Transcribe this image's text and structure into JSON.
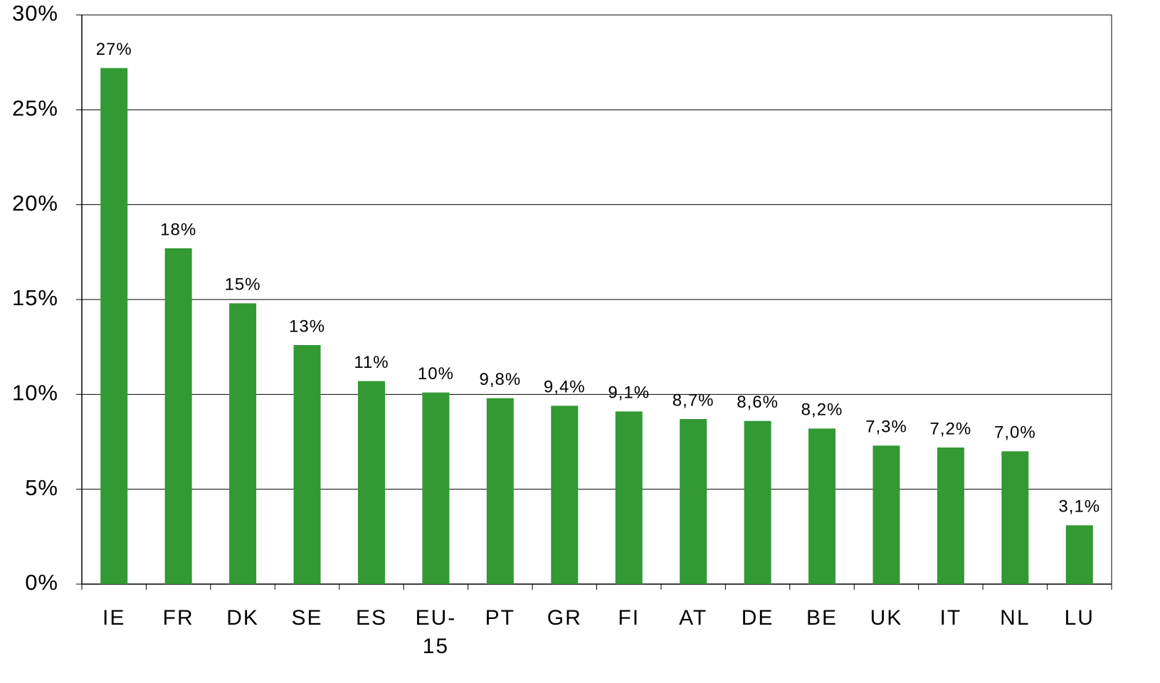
{
  "chart_data": {
    "type": "bar",
    "categories": [
      "IE",
      "FR",
      "DK",
      "SE",
      "ES",
      "EU-15",
      "PT",
      "GR",
      "FI",
      "AT",
      "DE",
      "BE",
      "UK",
      "IT",
      "NL",
      "LU"
    ],
    "values": [
      27.2,
      17.7,
      14.8,
      12.6,
      10.7,
      10.1,
      9.8,
      9.4,
      9.1,
      8.7,
      8.6,
      8.2,
      7.3,
      7.2,
      7.0,
      3.1
    ],
    "value_labels": [
      "27%",
      "18%",
      "15%",
      "13%",
      "11%",
      "10%",
      "9,8%",
      "9,4%",
      "9,1%",
      "8,7%",
      "8,6%",
      "8,2%",
      "7,3%",
      "7,2%",
      "7,0%",
      "3,1%"
    ],
    "color": "#339933",
    "ylim": [
      0,
      30
    ],
    "yticks": [
      {
        "value": 0,
        "label": "0%"
      },
      {
        "value": 5,
        "label": "5%"
      },
      {
        "value": 10,
        "label": "10%"
      },
      {
        "value": 15,
        "label": "15%"
      },
      {
        "value": 20,
        "label": "20%"
      },
      {
        "value": 25,
        "label": "25%"
      },
      {
        "value": 30,
        "label": "30%"
      }
    ],
    "grid": true
  }
}
